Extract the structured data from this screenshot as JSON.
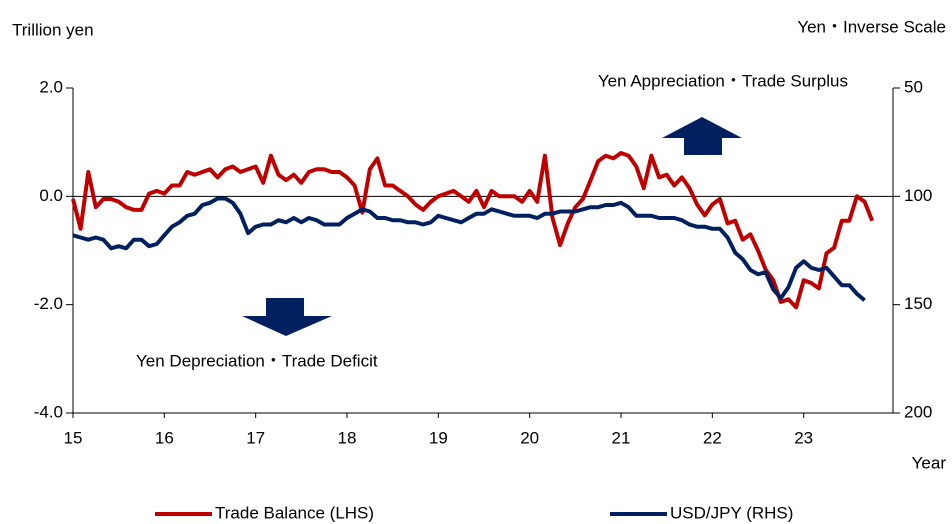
{
  "chart_data": {
    "type": "line",
    "y_axis_label": "Trillion yen",
    "y2_axis_label": "Yen・Inverse Scale",
    "x_axis_label": "Year",
    "annotations": [
      "Yen Appreciation・Trade Surplus",
      "Yen Depreciation・Trade Deficit"
    ],
    "x": [
      15,
      15.083,
      15.167,
      15.25,
      15.333,
      15.417,
      15.5,
      15.583,
      15.667,
      15.75,
      15.833,
      15.917,
      16,
      16.083,
      16.167,
      16.25,
      16.333,
      16.417,
      16.5,
      16.583,
      16.667,
      16.75,
      16.833,
      16.917,
      17,
      17.083,
      17.167,
      17.25,
      17.333,
      17.417,
      17.5,
      17.583,
      17.667,
      17.75,
      17.833,
      17.917,
      18,
      18.083,
      18.167,
      18.25,
      18.333,
      18.417,
      18.5,
      18.583,
      18.667,
      18.75,
      18.833,
      18.917,
      19,
      19.083,
      19.167,
      19.25,
      19.333,
      19.417,
      19.5,
      19.583,
      19.667,
      19.75,
      19.833,
      19.917,
      20,
      20.083,
      20.167,
      20.25,
      20.333,
      20.417,
      20.5,
      20.583,
      20.667,
      20.75,
      20.833,
      20.917,
      21,
      21.083,
      21.167,
      21.25,
      21.333,
      21.417,
      21.5,
      21.583,
      21.667,
      21.75,
      21.833,
      21.917,
      22,
      22.083,
      22.167,
      22.25,
      22.333,
      22.417,
      22.5,
      22.583,
      22.667,
      22.75,
      22.833,
      22.917,
      23,
      23.083,
      23.167,
      23.25,
      23.333,
      23.417,
      23.5,
      23.583,
      23.667,
      23.75
    ],
    "xlim": [
      15,
      24
    ],
    "xticks": [
      15,
      16,
      17,
      18,
      19,
      20,
      21,
      22,
      23
    ],
    "ylim": [
      -4,
      2
    ],
    "yticks": [
      {
        "value": -4,
        "label": "-4.0"
      },
      {
        "value": -2,
        "label": "-2.0"
      },
      {
        "value": 0,
        "label": "0.0"
      },
      {
        "value": 2,
        "label": "2.0"
      }
    ],
    "y2lim": [
      200,
      50
    ],
    "y2ticks": [
      200,
      150,
      100,
      50
    ],
    "y2_inverse": true,
    "legend": "bottom",
    "series": [
      {
        "name": "Trade Balance (LHS)",
        "color": "#c00000",
        "values": [
          -0.05,
          -0.6,
          0.45,
          -0.2,
          -0.05,
          -0.05,
          -0.1,
          -0.2,
          -0.25,
          -0.25,
          0.05,
          0.1,
          0.05,
          0.2,
          0.2,
          0.45,
          0.4,
          0.45,
          0.5,
          0.35,
          0.5,
          0.55,
          0.45,
          0.5,
          0.55,
          0.25,
          0.75,
          0.4,
          0.3,
          0.4,
          0.25,
          0.45,
          0.5,
          0.5,
          0.45,
          0.45,
          0.35,
          0.2,
          -0.3,
          0.5,
          0.7,
          0.2,
          0.2,
          0.1,
          0.0,
          -0.15,
          -0.25,
          -0.1,
          0.0,
          0.05,
          0.1,
          0.0,
          -0.1,
          0.1,
          -0.2,
          0.1,
          0.0,
          0.0,
          0.0,
          -0.1,
          0.1,
          -0.1,
          0.75,
          -0.4,
          -0.9,
          -0.5,
          -0.2,
          -0.05,
          0.3,
          0.65,
          0.75,
          0.7,
          0.8,
          0.75,
          0.55,
          0.15,
          0.75,
          0.35,
          0.4,
          0.2,
          0.35,
          0.15,
          -0.15,
          -0.35,
          -0.15,
          -0.05,
          -0.5,
          -0.45,
          -0.8,
          -0.7,
          -1.0,
          -1.35,
          -1.55,
          -1.95,
          -1.9,
          -2.05,
          -1.55,
          -1.6,
          -1.7,
          -1.05,
          -0.95,
          -0.45,
          -0.45,
          0.0,
          -0.1,
          -0.45
        ]
      },
      {
        "name": "USD/JPY (RHS)",
        "color": "#002060",
        "axis": "y2",
        "values": [
          118,
          119,
          120,
          119,
          120,
          124,
          123,
          124,
          120,
          120,
          123,
          122,
          118,
          114,
          112,
          109,
          108,
          104,
          103,
          101,
          101,
          103,
          108,
          117,
          114,
          113,
          113,
          111,
          112,
          110,
          112,
          110,
          111,
          113,
          113,
          113,
          110,
          108,
          106,
          107,
          110,
          110,
          111,
          111,
          112,
          112,
          113,
          112,
          109,
          110,
          111,
          112,
          110,
          108,
          108,
          106,
          107,
          108,
          109,
          109,
          109,
          110,
          108,
          108,
          107,
          107,
          107,
          106,
          105,
          105,
          104,
          104,
          103,
          105,
          109,
          109,
          109,
          110,
          110,
          110,
          111,
          113,
          114,
          114,
          115,
          115,
          119,
          126,
          129,
          134,
          136,
          135,
          143,
          147,
          142,
          133,
          130,
          133,
          134,
          133,
          137,
          141,
          141,
          145,
          148,
          null
        ]
      }
    ]
  }
}
